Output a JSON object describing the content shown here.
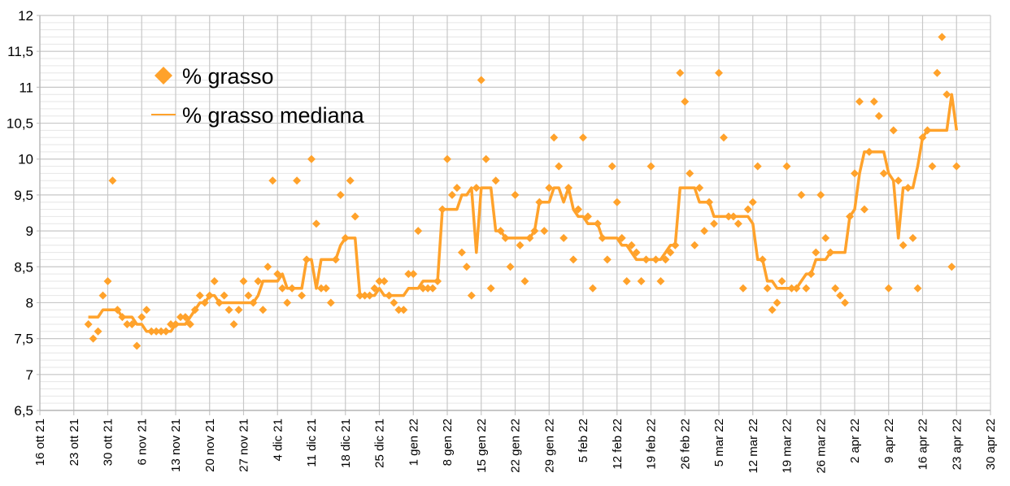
{
  "chart_data": {
    "type": "scatter+line",
    "title": "",
    "xlabel": "",
    "ylabel": "",
    "ylim": [
      6.5,
      12
    ],
    "xlim": [
      "2021-10-16",
      "2022-04-30"
    ],
    "grid": true,
    "legend_placement": "top-left",
    "y_tick_labels": [
      "6,5",
      "7",
      "7,5",
      "8",
      "8,5",
      "9",
      "9,5",
      "10",
      "10,5",
      "11",
      "11,5",
      "12"
    ],
    "y_tick_values": [
      6.5,
      7,
      7.5,
      8,
      8.5,
      9,
      9.5,
      10,
      10.5,
      11,
      11.5,
      12
    ],
    "x_tick_labels": [
      "16 ott 21",
      "23 ott 21",
      "30 ott 21",
      "6 nov 21",
      "13 nov 21",
      "20 nov 21",
      "27 nov 21",
      "4 dic 21",
      "11 dic 21",
      "18 dic 21",
      "25 dic 21",
      "1 gen 22",
      "8 gen 22",
      "15 gen 22",
      "22 gen 22",
      "29 gen 22",
      "5 feb 22",
      "12 feb 22",
      "19 feb 22",
      "26 feb 22",
      "5 mar 22",
      "12 mar 22",
      "19 mar 22",
      "26 mar 22",
      "2 apr 22",
      "9 apr 22",
      "16 apr 22",
      "23 apr 22",
      "30 apr 22"
    ],
    "x_tick_dates": [
      "2021-10-16",
      "2021-10-23",
      "2021-10-30",
      "2021-11-06",
      "2021-11-13",
      "2021-11-20",
      "2021-11-27",
      "2021-12-04",
      "2021-12-11",
      "2021-12-18",
      "2021-12-25",
      "2022-01-01",
      "2022-01-08",
      "2022-01-15",
      "2022-01-22",
      "2022-01-29",
      "2022-02-05",
      "2022-02-12",
      "2022-02-19",
      "2022-02-26",
      "2022-03-05",
      "2022-03-12",
      "2022-03-19",
      "2022-03-26",
      "2022-04-02",
      "2022-04-09",
      "2022-04-16",
      "2022-04-23",
      "2022-04-30"
    ],
    "colors": {
      "series": "#FFA22B",
      "grid_major": "#C8C8C8",
      "grid_minor": "#E6E6E6"
    },
    "x": [
      "2021-10-26",
      "2021-10-27",
      "2021-10-28",
      "2021-10-29",
      "2021-10-30",
      "2021-10-31",
      "2021-11-01",
      "2021-11-02",
      "2021-11-03",
      "2021-11-04",
      "2021-11-05",
      "2021-11-06",
      "2021-11-07",
      "2021-11-08",
      "2021-11-09",
      "2021-11-10",
      "2021-11-11",
      "2021-11-12",
      "2021-11-13",
      "2021-11-14",
      "2021-11-15",
      "2021-11-16",
      "2021-11-17",
      "2021-11-18",
      "2021-11-19",
      "2021-11-20",
      "2021-11-21",
      "2021-11-22",
      "2021-11-23",
      "2021-11-24",
      "2021-11-25",
      "2021-11-26",
      "2021-11-27",
      "2021-11-28",
      "2021-11-29",
      "2021-11-30",
      "2021-12-01",
      "2021-12-02",
      "2021-12-03",
      "2021-12-04",
      "2021-12-05",
      "2021-12-06",
      "2021-12-07",
      "2021-12-08",
      "2021-12-09",
      "2021-12-10",
      "2021-12-11",
      "2021-12-12",
      "2021-12-13",
      "2021-12-14",
      "2021-12-15",
      "2021-12-16",
      "2021-12-17",
      "2021-12-18",
      "2021-12-19",
      "2021-12-20",
      "2021-12-21",
      "2021-12-22",
      "2021-12-23",
      "2021-12-24",
      "2021-12-25",
      "2021-12-26",
      "2021-12-27",
      "2021-12-28",
      "2021-12-29",
      "2021-12-30",
      "2021-12-31",
      "2022-01-01",
      "2022-01-02",
      "2022-01-03",
      "2022-01-04",
      "2022-01-05",
      "2022-01-06",
      "2022-01-07",
      "2022-01-08",
      "2022-01-09",
      "2022-01-10",
      "2022-01-11",
      "2022-01-12",
      "2022-01-13",
      "2022-01-14",
      "2022-01-15",
      "2022-01-16",
      "2022-01-17",
      "2022-01-18",
      "2022-01-19",
      "2022-01-20",
      "2022-01-21",
      "2022-01-22",
      "2022-01-23",
      "2022-01-24",
      "2022-01-25",
      "2022-01-26",
      "2022-01-27",
      "2022-01-28",
      "2022-01-29",
      "2022-01-30",
      "2022-01-31",
      "2022-02-01",
      "2022-02-02",
      "2022-02-03",
      "2022-02-04",
      "2022-02-05",
      "2022-02-06",
      "2022-02-07",
      "2022-02-08",
      "2022-02-09",
      "2022-02-10",
      "2022-02-11",
      "2022-02-12",
      "2022-02-13",
      "2022-02-14",
      "2022-02-15",
      "2022-02-16",
      "2022-02-17",
      "2022-02-18",
      "2022-02-19",
      "2022-02-20",
      "2022-02-21",
      "2022-02-22",
      "2022-02-23",
      "2022-02-24",
      "2022-02-25",
      "2022-02-26",
      "2022-02-27",
      "2022-02-28",
      "2022-03-01",
      "2022-03-02",
      "2022-03-03",
      "2022-03-04",
      "2022-03-05",
      "2022-03-06",
      "2022-03-07",
      "2022-03-08",
      "2022-03-09",
      "2022-03-10",
      "2022-03-11",
      "2022-03-12",
      "2022-03-13",
      "2022-03-14",
      "2022-03-15",
      "2022-03-16",
      "2022-03-17",
      "2022-03-18",
      "2022-03-19",
      "2022-03-20",
      "2022-03-21",
      "2022-03-22",
      "2022-03-23",
      "2022-03-24",
      "2022-03-25",
      "2022-03-26",
      "2022-03-27",
      "2022-03-28",
      "2022-03-29",
      "2022-03-30",
      "2022-03-31",
      "2022-04-01",
      "2022-04-02",
      "2022-04-03",
      "2022-04-04",
      "2022-04-05",
      "2022-04-06",
      "2022-04-07",
      "2022-04-08",
      "2022-04-09",
      "2022-04-10",
      "2022-04-11",
      "2022-04-12",
      "2022-04-13",
      "2022-04-14",
      "2022-04-15",
      "2022-04-16",
      "2022-04-17",
      "2022-04-18",
      "2022-04-19",
      "2022-04-20",
      "2022-04-21",
      "2022-04-22",
      "2022-04-23"
    ],
    "series": [
      {
        "name": "% grasso",
        "kind": "scatter",
        "marker": "diamond",
        "values": [
          7.7,
          7.5,
          7.6,
          8.1,
          8.3,
          9.7,
          7.9,
          7.8,
          7.7,
          7.7,
          7.4,
          7.8,
          7.9,
          7.6,
          7.6,
          7.6,
          7.6,
          7.7,
          7.7,
          7.8,
          7.8,
          7.7,
          7.9,
          8.1,
          8.0,
          8.1,
          8.3,
          8.0,
          8.1,
          7.9,
          7.7,
          7.9,
          8.3,
          8.1,
          8.0,
          8.3,
          7.9,
          8.5,
          9.7,
          8.4,
          8.2,
          8.0,
          8.2,
          9.7,
          8.1,
          8.6,
          10.0,
          9.1,
          8.2,
          8.2,
          8.0,
          8.6,
          9.5,
          8.9,
          9.7,
          9.2,
          8.1,
          8.1,
          8.1,
          8.2,
          8.3,
          8.3,
          8.1,
          8.0,
          7.9,
          7.9,
          8.4,
          8.4,
          9.0,
          8.2,
          8.2,
          8.2,
          8.3,
          9.3,
          10.0,
          9.5,
          9.6,
          8.7,
          8.5,
          8.1,
          9.6,
          11.1,
          10.0,
          8.2,
          9.7,
          9.0,
          8.9,
          8.5,
          9.5,
          8.8,
          8.3,
          8.9,
          9.0,
          9.4,
          9.0,
          9.6,
          10.3,
          9.9,
          8.9,
          9.6,
          8.6,
          9.3,
          10.3,
          9.2,
          8.2,
          9.1,
          8.9,
          8.6,
          9.9,
          9.4,
          8.9,
          8.3,
          8.8,
          8.7,
          8.3,
          8.6,
          9.9,
          8.6,
          8.3,
          8.6,
          8.7,
          8.8,
          11.2,
          10.8,
          9.8,
          8.8,
          9.6,
          9.0,
          9.4,
          9.1,
          11.2,
          10.3,
          9.2,
          9.2,
          9.1,
          8.2,
          9.3,
          9.4,
          9.9,
          8.6,
          8.2,
          7.9,
          8.0,
          8.3,
          9.9,
          8.2,
          8.2,
          9.5,
          8.2,
          8.4,
          8.7,
          9.5,
          8.9,
          8.7,
          8.2,
          8.1,
          8.0,
          9.2,
          9.8,
          10.8,
          9.3,
          10.1,
          10.8,
          10.6,
          9.8,
          8.2,
          10.4,
          9.7,
          8.8,
          9.6,
          8.9,
          8.2,
          10.3,
          10.4,
          9.9,
          11.2,
          11.7,
          10.9,
          8.5,
          9.9
        ]
      },
      {
        "name": "% grasso mediana",
        "kind": "line",
        "values": [
          7.8,
          7.8,
          7.8,
          7.9,
          7.9,
          7.9,
          7.9,
          7.8,
          7.8,
          7.8,
          7.7,
          7.7,
          7.6,
          7.6,
          7.6,
          7.6,
          7.6,
          7.6,
          7.7,
          7.7,
          7.7,
          7.8,
          7.9,
          8.0,
          8.0,
          8.1,
          8.1,
          8.0,
          8.0,
          8.0,
          8.0,
          8.0,
          8.0,
          8.0,
          8.0,
          8.1,
          8.3,
          8.3,
          8.3,
          8.3,
          8.4,
          8.2,
          8.2,
          8.2,
          8.2,
          8.6,
          8.6,
          8.2,
          8.6,
          8.6,
          8.6,
          8.6,
          8.8,
          8.9,
          8.9,
          8.9,
          8.1,
          8.1,
          8.1,
          8.1,
          8.2,
          8.1,
          8.1,
          8.1,
          8.1,
          8.1,
          8.2,
          8.2,
          8.2,
          8.3,
          8.3,
          8.3,
          8.3,
          9.3,
          9.3,
          9.3,
          9.3,
          9.5,
          9.5,
          9.6,
          8.7,
          9.6,
          9.6,
          9.6,
          9.0,
          9.0,
          8.9,
          8.9,
          8.9,
          8.9,
          8.9,
          8.9,
          9.0,
          9.4,
          9.4,
          9.4,
          9.6,
          9.6,
          9.4,
          9.6,
          9.3,
          9.2,
          9.2,
          9.1,
          9.1,
          9.1,
          8.9,
          8.9,
          8.9,
          8.9,
          8.8,
          8.8,
          8.7,
          8.6,
          8.6,
          8.6,
          8.6,
          8.6,
          8.6,
          8.7,
          8.8,
          8.8,
          9.6,
          9.6,
          9.6,
          9.6,
          9.4,
          9.4,
          9.4,
          9.2,
          9.2,
          9.2,
          9.2,
          9.2,
          9.2,
          9.2,
          9.2,
          9.1,
          8.6,
          8.6,
          8.3,
          8.3,
          8.2,
          8.2,
          8.2,
          8.2,
          8.2,
          8.3,
          8.4,
          8.4,
          8.6,
          8.6,
          8.6,
          8.7,
          8.7,
          8.7,
          8.7,
          9.2,
          9.3,
          9.8,
          10.1,
          10.1,
          10.1,
          10.1,
          10.1,
          9.8,
          9.7,
          8.9,
          9.6,
          9.6,
          9.6,
          9.9,
          10.3,
          10.4,
          10.4,
          10.4,
          10.4,
          10.4,
          10.9,
          10.4
        ]
      }
    ]
  }
}
